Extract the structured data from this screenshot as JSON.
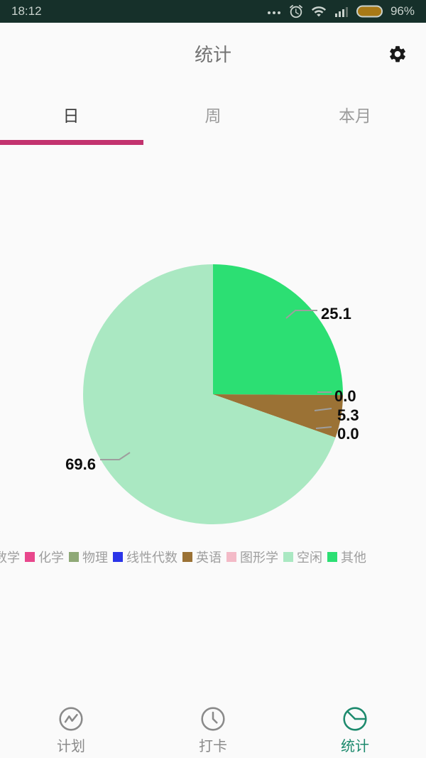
{
  "status_bar": {
    "time": "18:12",
    "battery_percent": "96%",
    "icons": [
      "more-dots-icon",
      "alarm-icon",
      "wifi-icon",
      "signal-icon",
      "battery-icon"
    ],
    "bar_color": "#16302a",
    "battery_fill_color": "#a87916"
  },
  "app_bar": {
    "title": "统计",
    "settings_icon": "gear-icon"
  },
  "tabs": {
    "items": [
      {
        "label": "日",
        "active": true
      },
      {
        "label": "周",
        "active": false
      },
      {
        "label": "本月",
        "active": false
      }
    ],
    "indicator_color": "#c2336e"
  },
  "chart_data": {
    "type": "pie",
    "direction": "clockwise",
    "start": "top",
    "total": 100.0,
    "slices": [
      {
        "name": "其他",
        "value": 25.1,
        "label": "25.1",
        "color": "#2cdf73"
      },
      {
        "name": "",
        "value": 0.0,
        "label": "0.0"
      },
      {
        "name": "英语",
        "value": 5.3,
        "label": "5.3",
        "color": "#9b7235"
      },
      {
        "name": "",
        "value": 0.0,
        "label": "0.0"
      },
      {
        "name": "空闲",
        "value": 69.6,
        "label": "69.6",
        "color": "#aae8c2"
      }
    ],
    "label_color": "#0d0d0d",
    "leader_line_color": "#9e9e9e",
    "legend_position": "bottom"
  },
  "legend": {
    "items": [
      {
        "label": "数学"
      },
      {
        "label": "化学",
        "color": "#e8478c"
      },
      {
        "label": "物理",
        "color": "#8fa977"
      },
      {
        "label": "线性代数",
        "color": "#2b35e8"
      },
      {
        "label": "英语",
        "color": "#9b7235"
      },
      {
        "label": "图形学",
        "color": "#f3bac7"
      },
      {
        "label": "空闲",
        "color": "#aae8c2"
      },
      {
        "label": "其他",
        "color": "#2cdf73"
      }
    ]
  },
  "bottom_nav": {
    "items": [
      {
        "label": "计划",
        "icon": "line-chart-icon",
        "active": false
      },
      {
        "label": "打卡",
        "icon": "clock-icon",
        "active": false
      },
      {
        "label": "统计",
        "icon": "pie-chart-icon",
        "active": true
      }
    ],
    "active_color": "#1d8a6d",
    "inactive_color": "#8a8a8a"
  }
}
